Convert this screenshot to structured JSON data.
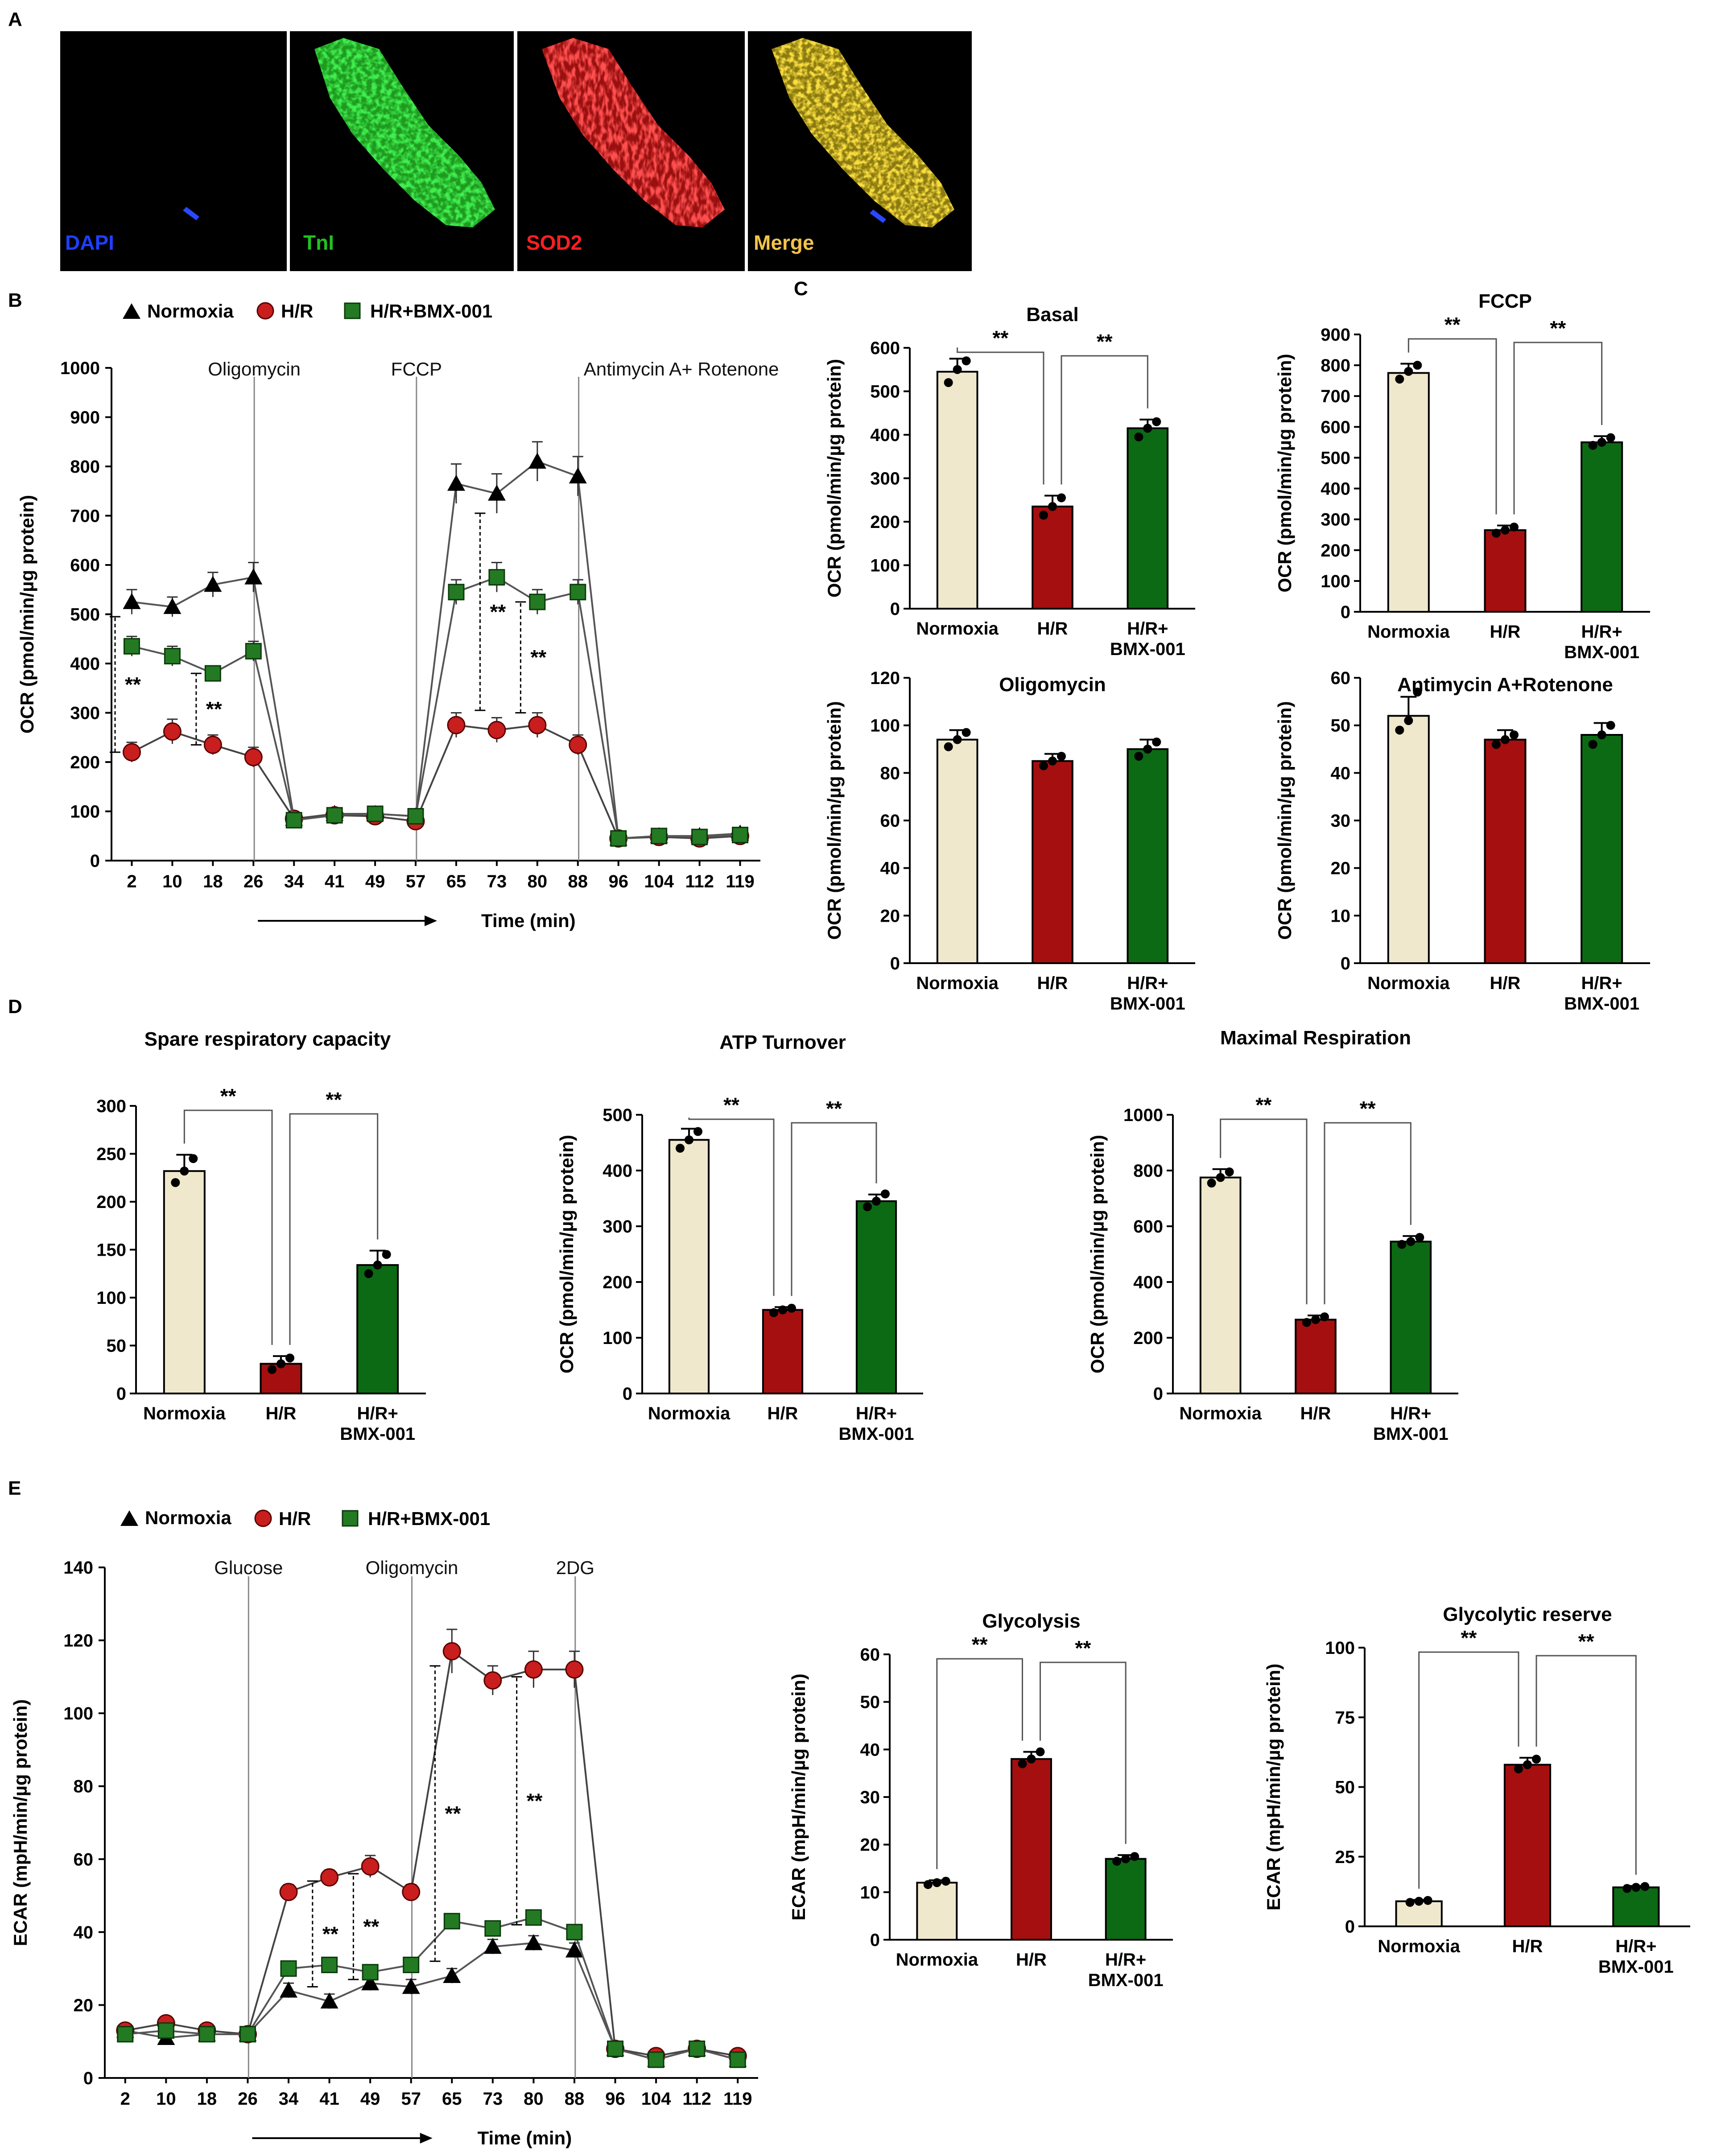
{
  "panels": [
    {
      "key": "A",
      "label": "A"
    },
    {
      "key": "B",
      "label": "B"
    },
    {
      "key": "C",
      "label": "C"
    },
    {
      "key": "D",
      "label": "D"
    },
    {
      "key": "E",
      "label": "E"
    }
  ],
  "micrographs": [
    {
      "label": "DAPI",
      "color": "#1f3fff",
      "stain": "nucleus"
    },
    {
      "label": "TnI",
      "color": "#22c022",
      "stain": "green"
    },
    {
      "label": "SOD2",
      "color": "#ff2020",
      "stain": "red"
    },
    {
      "label": "Merge",
      "color": "#f2c24a",
      "stain": "merge"
    }
  ],
  "groups": {
    "labels": [
      "Normoxia",
      "H/R",
      "H/R+ BMX-001"
    ],
    "colors": [
      "#efe8cc",
      "#a50f0f",
      "#0c6a14"
    ]
  },
  "legend": {
    "normoxia": "Normoxia",
    "hr": "H/R",
    "bmx": "H/R+BMX-001",
    "colors": {
      "normoxia": "#000000",
      "hr": "#c81e1e",
      "bmx": "#237a23"
    }
  },
  "significance_marker": "**",
  "chart_data": [
    {
      "id": "B",
      "type": "line",
      "x": [
        2,
        10,
        18,
        26,
        34,
        41,
        49,
        57,
        65,
        73,
        80,
        88,
        96,
        104,
        112,
        119
      ],
      "xlabel": "Time (min)",
      "ylabel": "OCR (pmol/min/µg protein)",
      "ylim": [
        0,
        1000
      ],
      "yticks": [
        0,
        100,
        200,
        300,
        400,
        500,
        600,
        700,
        800,
        900,
        1000
      ],
      "injections": [
        {
          "label": "Oligomycin",
          "after_index": 3
        },
        {
          "label": "FCCP",
          "after_index": 7
        },
        {
          "label": "Antimycin A+ Rotenone",
          "after_index": 11
        }
      ],
      "series": [
        {
          "name": "Normoxia",
          "marker": "triangle",
          "values": [
            525,
            515,
            560,
            575,
            85,
            95,
            95,
            90,
            765,
            745,
            810,
            780,
            45,
            50,
            50,
            55
          ],
          "errors": [
            25,
            20,
            25,
            30,
            10,
            10,
            10,
            10,
            40,
            40,
            40,
            40,
            5,
            5,
            5,
            5
          ]
        },
        {
          "name": "H/R",
          "marker": "circle",
          "values": [
            220,
            262,
            235,
            210,
            85,
            92,
            90,
            80,
            275,
            265,
            275,
            235,
            45,
            48,
            45,
            50
          ],
          "errors": [
            20,
            25,
            20,
            20,
            10,
            10,
            10,
            10,
            25,
            25,
            25,
            20,
            5,
            5,
            5,
            5
          ]
        },
        {
          "name": "H/R+BMX-001",
          "marker": "square",
          "values": [
            435,
            415,
            380,
            425,
            82,
            92,
            95,
            90,
            545,
            575,
            525,
            545,
            45,
            50,
            48,
            52
          ],
          "errors": [
            20,
            20,
            15,
            20,
            10,
            10,
            10,
            10,
            25,
            30,
            25,
            25,
            5,
            5,
            5,
            5
          ]
        }
      ],
      "significance": [
        {
          "x_index": 0,
          "from": 220,
          "to": 495,
          "label": "**"
        },
        {
          "x_index": 2,
          "from": 235,
          "to": 380,
          "label": "**"
        },
        {
          "x_index": 9,
          "from": 305,
          "to": 705,
          "label": "**"
        },
        {
          "x_index": 10,
          "from": 300,
          "to": 525,
          "label": "**"
        }
      ]
    },
    {
      "id": "C-basal",
      "type": "bar",
      "title": "Basal",
      "categories": [
        "Normoxia",
        "H/R",
        "H/R+ BMX-001"
      ],
      "values": [
        545,
        235,
        415
      ],
      "errors": [
        30,
        25,
        20
      ],
      "points": [
        [
          520,
          550,
          570
        ],
        [
          215,
          235,
          255
        ],
        [
          395,
          415,
          430
        ]
      ],
      "ylim": [
        0,
        600
      ],
      "yticks": [
        0,
        100,
        200,
        300,
        400,
        500,
        600
      ],
      "ylabel": "OCR (pmol/min/µg protein)",
      "brackets": [
        [
          0,
          1
        ],
        [
          1,
          2
        ]
      ]
    },
    {
      "id": "C-fccp",
      "type": "bar",
      "title": "FCCP",
      "categories": [
        "Normoxia",
        "H/R",
        "H/R+ BMX-001"
      ],
      "values": [
        775,
        265,
        550
      ],
      "errors": [
        30,
        15,
        20
      ],
      "points": [
        [
          755,
          780,
          800
        ],
        [
          255,
          265,
          275
        ],
        [
          540,
          550,
          565
        ]
      ],
      "ylim": [
        0,
        900
      ],
      "yticks": [
        0,
        100,
        200,
        300,
        400,
        500,
        600,
        700,
        800,
        900
      ],
      "ylabel": "OCR (pmol/min/µg protein)",
      "brackets": [
        [
          0,
          1
        ],
        [
          1,
          2
        ]
      ]
    },
    {
      "id": "C-oligo",
      "type": "bar",
      "title": "Oligomycin",
      "categories": [
        "Normoxia",
        "H/R",
        "H/R+ BMX-001"
      ],
      "values": [
        94,
        85,
        90
      ],
      "errors": [
        4,
        3,
        4
      ],
      "points": [
        [
          91,
          94,
          97
        ],
        [
          83,
          85,
          87
        ],
        [
          87,
          90,
          93
        ]
      ],
      "ylim": [
        0,
        120
      ],
      "yticks": [
        0,
        20,
        40,
        60,
        80,
        100,
        120
      ],
      "ylabel": "OCR (pmol/min/µg protein)",
      "brackets": []
    },
    {
      "id": "C-antimycin",
      "type": "bar",
      "title": "Antimycin A+Rotenone",
      "categories": [
        "Normoxia",
        "H/R",
        "H/R+ BMX-001"
      ],
      "values": [
        52,
        47,
        48
      ],
      "errors": [
        4,
        2,
        2.5
      ],
      "points": [
        [
          49,
          51,
          57
        ],
        [
          46,
          47,
          48
        ],
        [
          46,
          48,
          50
        ]
      ],
      "ylim": [
        0,
        60
      ],
      "yticks": [
        0,
        10,
        20,
        30,
        40,
        50,
        60
      ],
      "ylabel": "OCR (pmol/min/µg protein)",
      "brackets": []
    },
    {
      "id": "D-spare",
      "type": "bar",
      "title": "Spare respiratory capacity",
      "categories": [
        "Normoxia",
        "H/R",
        "H/R+ BMX-001"
      ],
      "values": [
        232,
        31,
        134
      ],
      "errors": [
        17,
        8,
        15
      ],
      "points": [
        [
          220,
          232,
          245
        ],
        [
          25,
          31,
          37
        ],
        [
          125,
          134,
          145
        ]
      ],
      "ylim": [
        0,
        300
      ],
      "yticks": [
        0,
        50,
        100,
        150,
        200,
        250,
        300
      ],
      "ylabel": "",
      "brackets": [
        [
          0,
          1
        ],
        [
          1,
          2
        ]
      ]
    },
    {
      "id": "D-atp",
      "type": "bar",
      "title": "ATP Turnover",
      "categories": [
        "Normoxia",
        "H/R",
        "H/R+ BMX-001"
      ],
      "values": [
        455,
        150,
        345
      ],
      "errors": [
        20,
        5,
        12
      ],
      "points": [
        [
          440,
          455,
          470
        ],
        [
          145,
          150,
          153
        ],
        [
          335,
          345,
          358
        ]
      ],
      "ylim": [
        0,
        500
      ],
      "yticks": [
        0,
        100,
        200,
        300,
        400,
        500
      ],
      "ylabel": "OCR (pmol/min/µg protein)",
      "brackets": [
        [
          0,
          1
        ],
        [
          1,
          2
        ]
      ]
    },
    {
      "id": "D-maximal",
      "type": "bar",
      "title": "Maximal Respiration",
      "categories": [
        "Normoxia",
        "H/R",
        "H/R+ BMX-001"
      ],
      "values": [
        775,
        265,
        545
      ],
      "errors": [
        30,
        15,
        20
      ],
      "points": [
        [
          755,
          775,
          795
        ],
        [
          255,
          265,
          275
        ],
        [
          535,
          545,
          560
        ]
      ],
      "ylim": [
        0,
        1000
      ],
      "yticks": [
        0,
        200,
        400,
        600,
        800,
        1000
      ],
      "ylabel": "OCR (pmol/min/µg protein)",
      "brackets": [
        [
          0,
          1
        ],
        [
          1,
          2
        ]
      ]
    },
    {
      "id": "E",
      "type": "line",
      "x": [
        2,
        10,
        18,
        26,
        34,
        41,
        49,
        57,
        65,
        73,
        80,
        88,
        96,
        104,
        112,
        119
      ],
      "xlabel": "Time (min)",
      "ylabel": "ECAR (mpH/min/µg protein)",
      "ylim": [
        0,
        140
      ],
      "yticks": [
        0,
        20,
        40,
        60,
        80,
        100,
        120,
        140
      ],
      "injections": [
        {
          "label": "Glucose",
          "after_index": 3
        },
        {
          "label": "Oligomycin",
          "after_index": 7
        },
        {
          "label": "2DG",
          "after_index": 11
        }
      ],
      "series": [
        {
          "name": "Normoxia",
          "marker": "triangle",
          "values": [
            13,
            11,
            12,
            12,
            24,
            21,
            26,
            25,
            28,
            36,
            37,
            35,
            8,
            5,
            8,
            5
          ],
          "errors": [
            1,
            1,
            1,
            1,
            2,
            2,
            2,
            2,
            2,
            2,
            2,
            2,
            1,
            1,
            1,
            1
          ]
        },
        {
          "name": "H/R",
          "marker": "circle",
          "values": [
            13,
            15,
            13,
            12,
            51,
            55,
            58,
            51,
            117,
            109,
            112,
            112,
            8,
            6,
            8,
            6
          ],
          "errors": [
            1,
            1,
            1,
            1,
            2,
            2,
            3,
            2,
            6,
            4,
            5,
            5,
            1,
            1,
            1,
            1
          ]
        },
        {
          "name": "H/R+BMX-001",
          "marker": "square",
          "values": [
            12,
            13,
            12,
            12,
            30,
            31,
            29,
            31,
            43,
            41,
            44,
            40,
            8,
            5,
            8,
            5
          ],
          "errors": [
            1,
            1,
            1,
            1,
            2,
            2,
            2,
            2,
            2,
            2,
            2,
            2,
            1,
            1,
            1,
            1
          ]
        }
      ],
      "significance": [
        {
          "x_index": 5,
          "from": 25,
          "to": 54,
          "label": "**"
        },
        {
          "x_index": 6,
          "from": 27,
          "to": 56,
          "label": "**"
        },
        {
          "x_index": 8,
          "from": 32,
          "to": 113,
          "label": "**"
        },
        {
          "x_index": 10,
          "from": 42,
          "to": 110,
          "label": "**"
        }
      ]
    },
    {
      "id": "E-glycolysis",
      "type": "bar",
      "title": "Glycolysis",
      "categories": [
        "Normoxia",
        "H/R",
        "H/R+ BMX-001"
      ],
      "values": [
        12,
        38,
        17
      ],
      "errors": [
        0.5,
        1.5,
        0.8
      ],
      "points": [
        [
          11.6,
          12,
          12.3
        ],
        [
          37,
          38,
          39.5
        ],
        [
          16.5,
          17,
          17.5
        ]
      ],
      "ylim": [
        0,
        60
      ],
      "yticks": [
        0,
        10,
        20,
        30,
        40,
        50,
        60
      ],
      "ylabel": "ECAR (mpH/min/µg protein)",
      "brackets": [
        [
          0,
          1
        ],
        [
          1,
          2
        ]
      ]
    },
    {
      "id": "E-reserve",
      "type": "bar",
      "title": "Glycolytic reserve",
      "categories": [
        "Normoxia",
        "H/R",
        "H/R+ BMX-001"
      ],
      "values": [
        9,
        58,
        14
      ],
      "errors": [
        0.5,
        2.5,
        0.5
      ],
      "points": [
        [
          8.6,
          9,
          9.3
        ],
        [
          56.5,
          58,
          60
        ],
        [
          13.6,
          14,
          14.3
        ]
      ],
      "ylim": [
        0,
        100
      ],
      "yticks": [
        0,
        25,
        50,
        75,
        100
      ],
      "ylabel": "ECAR (mpH/min/µg protein)",
      "brackets": [
        [
          0,
          1
        ],
        [
          1,
          2
        ]
      ]
    }
  ]
}
